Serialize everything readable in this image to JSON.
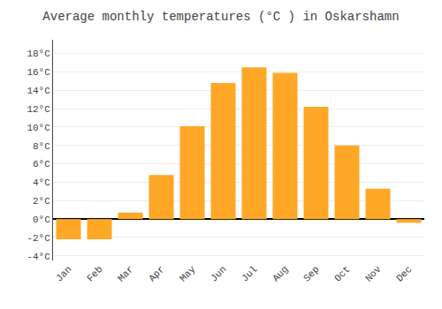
{
  "chart_data": {
    "type": "bar",
    "title": "Average monthly temperatures (°C ) in Oskarshamn",
    "categories": [
      "Jan",
      "Feb",
      "Mar",
      "Apr",
      "May",
      "Jun",
      "Jul",
      "Aug",
      "Sep",
      "Oct",
      "Nov",
      "Dec"
    ],
    "values": [
      -2.2,
      -2.2,
      0.7,
      4.8,
      10.1,
      14.8,
      16.5,
      15.9,
      12.2,
      8.0,
      3.3,
      -0.4
    ],
    "color": "#FFA726",
    "ylim": [
      -4.5,
      19.5
    ],
    "yticks": [
      {
        "value": -4,
        "label": "-4°C"
      },
      {
        "value": -2,
        "label": "-2°C"
      },
      {
        "value": 0,
        "label": "0°C"
      },
      {
        "value": 2,
        "label": "2°C"
      },
      {
        "value": 4,
        "label": "4°C"
      },
      {
        "value": 6,
        "label": "6°C"
      },
      {
        "value": 8,
        "label": "8°C"
      },
      {
        "value": 10,
        "label": "10°C"
      },
      {
        "value": 12,
        "label": "12°C"
      },
      {
        "value": 14,
        "label": "14°C"
      },
      {
        "value": 16,
        "label": "16°C"
      },
      {
        "value": 18,
        "label": "18°C"
      }
    ],
    "grid": true
  }
}
